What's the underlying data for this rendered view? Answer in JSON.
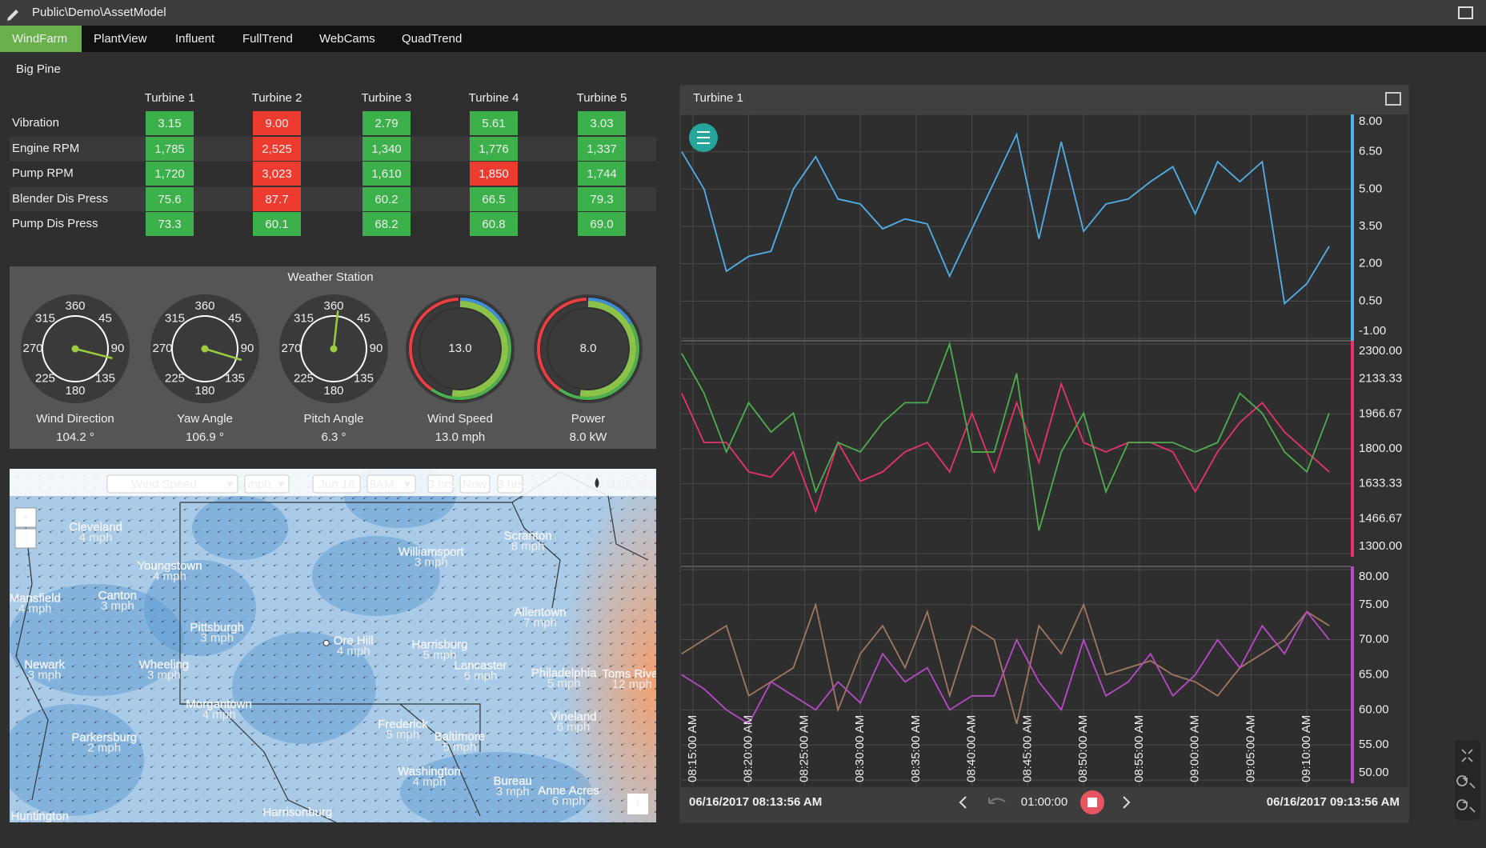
{
  "header": {
    "path": "Public\\Demo\\AssetModel"
  },
  "tabs": {
    "items": [
      "WindFarm",
      "PlantView",
      "Influent",
      "FullTrend",
      "WebCams",
      "QuadTrend"
    ],
    "active": 0,
    "active_color": "#6ab04c"
  },
  "site": "Big Pine",
  "table": {
    "columns": [
      "Turbine 1",
      "Turbine 2",
      "Turbine 3",
      "Turbine 4",
      "Turbine 5"
    ],
    "rows": [
      {
        "label": "Vibration",
        "cells": [
          "3.15",
          "9.00",
          "2.79",
          "5.61",
          "3.03"
        ],
        "colors": [
          "#3cb04a",
          "#ee3b2f",
          "#3cb04a",
          "#3cb04a",
          "#3cb04a"
        ]
      },
      {
        "label": "Engine RPM",
        "cells": [
          "1,785",
          "2,525",
          "1,340",
          "1,776",
          "1,337"
        ],
        "colors": [
          "#3cb04a",
          "#ee3b2f",
          "#3cb04a",
          "#3cb04a",
          "#3cb04a"
        ]
      },
      {
        "label": "Pump RPM",
        "cells": [
          "1,720",
          "3,023",
          "1,610",
          "1,850",
          "1,744"
        ],
        "colors": [
          "#3cb04a",
          "#ee3b2f",
          "#3cb04a",
          "#ee3b2f",
          "#3cb04a"
        ]
      },
      {
        "label": "Blender Dis Press",
        "cells": [
          "75.6",
          "87.7",
          "60.2",
          "66.5",
          "79.3"
        ],
        "colors": [
          "#3cb04a",
          "#ee3b2f",
          "#3cb04a",
          "#3cb04a",
          "#3cb04a"
        ]
      },
      {
        "label": "Pump Dis Press",
        "cells": [
          "73.3",
          "60.1",
          "68.2",
          "60.8",
          "69.0"
        ],
        "colors": [
          "#3cb04a",
          "#3cb04a",
          "#3cb04a",
          "#3cb04a",
          "#3cb04a"
        ]
      }
    ]
  },
  "weather": {
    "title": "Weather Station",
    "dial_labels": [
      360,
      45,
      90,
      135,
      180,
      225,
      270,
      315
    ],
    "gauges": [
      {
        "label": "Wind Direction",
        "type": "compass",
        "value": 104.2,
        "unit": "°"
      },
      {
        "label": "Yaw Angle",
        "type": "compass",
        "value": 106.9,
        "unit": "°"
      },
      {
        "label": "Pitch Angle",
        "type": "compass",
        "value": 6.3,
        "unit": "°"
      },
      {
        "label": "Wind Speed",
        "type": "ring",
        "value": 13,
        "value_label": "13.0",
        "unit": "mph"
      },
      {
        "label": "Power",
        "type": "ring",
        "value": 8,
        "value_label": "8.0",
        "unit": "kW"
      }
    ]
  },
  "map": {
    "controls": {
      "layer": "Wind Speed",
      "unit": "mph",
      "date": "Jun 16",
      "hour": "9AM",
      "back": "3 hrs",
      "now": "Now",
      "forward": "3 hrs",
      "brand": "Dark Sky",
      "zoom_in": "+",
      "zoom_out": "−",
      "info": "i"
    },
    "cities": [
      {
        "name": "Cleveland",
        "wind": "4 mph"
      },
      {
        "name": "Youngstown",
        "wind": "4 mph"
      },
      {
        "name": "Canton",
        "wind": "3 mph"
      },
      {
        "name": "Mansfield",
        "wind": "4 mph"
      },
      {
        "name": "Pittsburgh",
        "wind": "3 mph"
      },
      {
        "name": "Wheeling",
        "wind": "3 mph"
      },
      {
        "name": "Newark",
        "wind": "3 mph"
      },
      {
        "name": "Morgantown",
        "wind": "4 mph"
      },
      {
        "name": "Parkersburg",
        "wind": "2 mph"
      },
      {
        "name": "Huntington"
      },
      {
        "name": "Williamsport",
        "wind": "3 mph"
      },
      {
        "name": "Scranton",
        "wind": "8 mph"
      },
      {
        "name": "Allentown",
        "wind": "7 mph"
      },
      {
        "name": "Ore Hill",
        "wind": "4 mph"
      },
      {
        "name": "Harrisburg",
        "wind": "5 mph"
      },
      {
        "name": "Lancaster",
        "wind": "6 mph"
      },
      {
        "name": "Philadelphia",
        "wind": "5 mph"
      },
      {
        "name": "Toms River",
        "wind": "12 mph"
      },
      {
        "name": "Vineland",
        "wind": "6 mph"
      },
      {
        "name": "Frederick",
        "wind": "5 mph"
      },
      {
        "name": "Baltimore",
        "wind": "5 mph"
      },
      {
        "name": "Washington",
        "wind": "4 mph"
      },
      {
        "name": "Bureau",
        "wind": "3 mph"
      },
      {
        "name": "Anne Acres",
        "wind": "6 mph"
      },
      {
        "name": "Harrisonburg"
      }
    ]
  },
  "chart_data": {
    "type": "line",
    "title": "Turbine 1",
    "xlim": [
      "06/16/2017 08:13:56 AM",
      "06/16/2017 09:13:56 AM"
    ],
    "xticks": [
      "08:15:00 AM",
      "08:20:00 AM",
      "08:25:00 AM",
      "08:30:00 AM",
      "08:35:00 AM",
      "08:40:00 AM",
      "08:45:00 AM",
      "08:50:00 AM",
      "08:55:00 AM",
      "09:00:00 AM",
      "09:05:00 AM",
      "09:10:00 AM"
    ],
    "x": [
      "08:14:00 AM",
      "08:16:00 AM",
      "08:18:00 AM",
      "08:20:00 AM",
      "08:22:00 AM",
      "08:24:00 AM",
      "08:26:00 AM",
      "08:28:00 AM",
      "08:30:00 AM",
      "08:32:00 AM",
      "08:34:00 AM",
      "08:36:00 AM",
      "08:38:00 AM",
      "08:40:00 AM",
      "08:42:00 AM",
      "08:44:00 AM",
      "08:46:00 AM",
      "08:48:00 AM",
      "08:50:00 AM",
      "08:52:00 AM",
      "08:54:00 AM",
      "08:56:00 AM",
      "08:58:00 AM",
      "09:00:00 AM",
      "09:02:00 AM",
      "09:04:00 AM",
      "09:06:00 AM",
      "09:08:00 AM",
      "09:10:00 AM",
      "09:12:00 AM"
    ],
    "grid": true,
    "window": "01:00:00",
    "panes": [
      {
        "ylim": [
          -1,
          8
        ],
        "axis_color": "#4fb3e8",
        "yticks": [
          {
            "value": 8,
            "label": "8.00"
          },
          {
            "value": 6.5,
            "label": "6.50"
          },
          {
            "value": 5,
            "label": "5.00"
          },
          {
            "value": 3.5,
            "label": "3.50"
          },
          {
            "value": 2,
            "label": "2.00"
          },
          {
            "value": 0.5,
            "label": "0.50"
          },
          {
            "value": -1,
            "label": "-1.00"
          }
        ],
        "series": [
          {
            "color": "#4fb0e8",
            "values": [
              6.5,
              5,
              1.7,
              2.3,
              2.5,
              5,
              6.3,
              4.6,
              4.4,
              3.4,
              3.8,
              3.6,
              1.5,
              3.4,
              5.3,
              7.2,
              3,
              6.9,
              3.3,
              4.4,
              4.6,
              5.3,
              5.9,
              4,
              6.1,
              5.3,
              6.1,
              0.4,
              1.2,
              2.7
            ]
          }
        ]
      },
      {
        "ylim": [
          1300,
          2300
        ],
        "axis_color": "#e8336b",
        "yticks": [
          {
            "value": 2300,
            "label": "2300.00"
          },
          {
            "value": 2133.33,
            "label": "2133.33"
          },
          {
            "value": 1966.67,
            "label": "1966.67"
          },
          {
            "value": 1800,
            "label": "1800.00"
          },
          {
            "value": 1633.33,
            "label": "1633.33"
          },
          {
            "value": 1466.67,
            "label": "1466.67"
          },
          {
            "value": 1300,
            "label": "1300.00"
          }
        ],
        "series": [
          {
            "color": "#e8336b",
            "values": [
              2065,
              1830,
              1830,
              1690,
              1665,
              1785,
              1500,
              1830,
              1645,
              1690,
              1785,
              1830,
              1690,
              1970,
              1690,
              2020,
              1735,
              2110,
              1830,
              1785,
              1830,
              1830,
              1785,
              1595,
              1785,
              1925,
              2020,
              1880,
              1785,
              1690
            ]
          },
          {
            "color": "#4cae4c",
            "values": [
              2255,
              2065,
              1785,
              2020,
              1880,
              1970,
              1595,
              1830,
              1785,
              1925,
              2020,
              2020,
              2300,
              1785,
              1785,
              2160,
              1410,
              1785,
              1970,
              1595,
              1830,
              1830,
              1830,
              1785,
              1830,
              2065,
              1970,
              1785,
              1690,
              1970
            ]
          }
        ]
      },
      {
        "ylim": [
          50,
          80
        ],
        "axis_color": "#b84ac8",
        "yticks": [
          {
            "value": 80,
            "label": "80.00"
          },
          {
            "value": 75,
            "label": "75.00"
          },
          {
            "value": 70,
            "label": "70.00"
          },
          {
            "value": 65,
            "label": "65.00"
          },
          {
            "value": 60,
            "label": "60.00"
          },
          {
            "value": 55,
            "label": "55.00"
          },
          {
            "value": 50,
            "label": "50.00"
          }
        ],
        "series": [
          {
            "color": "#a07860",
            "values": [
              68,
              70,
              72,
              62,
              64,
              66,
              75,
              60,
              68,
              72,
              66,
              74,
              62,
              72,
              70,
              58,
              72,
              68,
              75,
              65,
              66,
              67,
              65,
              64,
              62,
              66,
              68,
              70,
              74,
              72
            ]
          },
          {
            "color": "#b84ac8",
            "values": [
              65,
              63,
              60,
              58,
              64,
              62,
              60,
              64,
              61,
              68,
              64,
              66,
              60,
              62,
              62,
              70,
              64,
              60,
              70,
              62,
              64,
              68,
              62,
              65,
              70,
              66,
              72,
              68,
              74,
              70
            ]
          }
        ]
      }
    ]
  }
}
